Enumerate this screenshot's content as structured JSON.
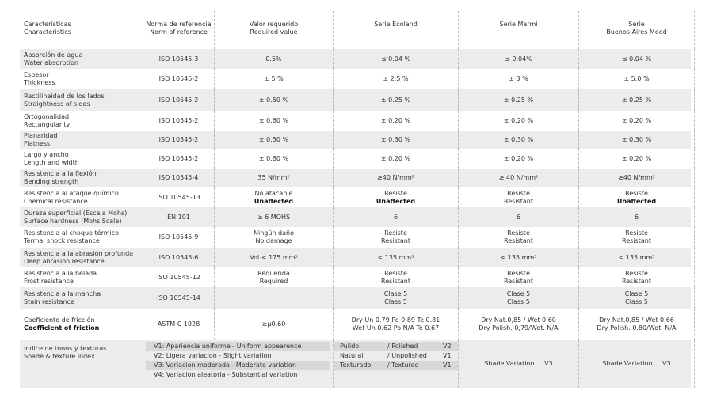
{
  "header": [
    "Características\nCharacteristics",
    "Norma de referencia\nNorm of reference",
    "Valor requerido\nRequired value",
    "Serie Ecoland",
    "Serie Marmi",
    "Serie\nBuenos Aires Mood"
  ],
  "rows": [
    [
      "Absorción de agua\nWater absorption",
      "ISO 10545-3",
      "0.5%",
      "≤ 0.04 %",
      "≤ 0.04%",
      "≤ 0.04 %"
    ],
    [
      "Espesor\nThickness",
      "ISO 10545-2",
      "± 5 %",
      "± 2.5 %",
      "± 3 %",
      "± 5.0 %"
    ],
    [
      "Rectilineidad de los lados\nStraightness of sides",
      "ISO 10545-2",
      "± 0.50 %",
      "± 0.25 %",
      "± 0.25 %",
      "± 0.25 %"
    ],
    [
      "Ortogonalidad\nRectangularity",
      "ISO 10545-2",
      "± 0.60 %",
      "± 0.20 %",
      "± 0.20 %",
      "± 0.20 %"
    ],
    [
      "Planaridad\nFlatness",
      "ISO 10545-2",
      "± 0.50 %",
      "± 0.30 %",
      "± 0.30 %",
      "± 0.30 %"
    ],
    [
      "Largo y ancho\nLength and width",
      "ISO 10545-2",
      "± 0.60 %",
      "± 0.20 %",
      "± 0.20 %",
      "± 0.20 %"
    ],
    [
      "Resistencia a la flexión\nBending strength",
      "ISO 10545-4",
      "35 N/mm²",
      "≥40 N/mm²",
      "≥ 40 N/mm²",
      "≥40 N/mm²"
    ],
    [
      "Resistencia al ataque químico\nChemical resistance",
      "ISO 10545-13",
      "No atacable\n*Unaffected",
      "Resiste\n*Unaffected",
      "Resiste\nResistant",
      "Resiste\n*Unaffected"
    ],
    [
      "Dureza superficial (Escala Mohs)\nSurface hardness (Mohs Scale)",
      "EN 101",
      "≥ 6 MOHS",
      "6",
      "6",
      "6"
    ],
    [
      "Resistencia al choque térmico\nTermal shock resistance",
      "ISO 10545-9",
      "Ningún daño\nNo damage",
      "Resiste\nResistant",
      "Resiste\nResistant",
      "Resiste\nResistant"
    ],
    [
      "Resistencia a la abrasión profunda\nDeep abrasion resistance",
      "ISO 10545-6",
      "Vol < 175 mm³",
      "< 135 mm³",
      "< 135 mm³",
      "< 135 mm³"
    ],
    [
      "Resistencia a la helada\nFrost resistance",
      "ISO 10545-12",
      "Requerida\nRequired",
      "Resiste\nResistant",
      "Resiste\nResistant",
      "Resiste\nResistant"
    ],
    [
      "Resistencia a la mancha\nStain resistance",
      "ISO 10545-14",
      "",
      "Clase 5\nClass 5",
      "Clase 5\nClass 5",
      "Clase 5\nClass 5"
    ],
    [
      "Coeficiente de fricción\n*Coefficient of friction",
      "ASTM C 1028",
      "≥μ0.60",
      "Dry  Un 0.79  Po 0.89  Te 0.81\nWet Un 0.62  Po N/A  Te 0.67",
      "Dry Nat.0,85 / Wet 0.60\nDry Polish. 0,79/Wet. N/A",
      "Dry Nat.0,85 / Wet 0,66\nDry Polish. 0.80/Wet. N/A"
    ]
  ],
  "shade": {
    "label": "Indice de tonos y texturas\nShade & texture index",
    "scale": [
      "V1: Apariencia uniforme - Uniform appearence",
      "V2: Ligera variacion - Slight variation",
      "V3: Variacion moderada - Moderate variation",
      "V4: Variacion aleatoria - Substantial variation"
    ],
    "ecoland": [
      [
        "Pulido",
        "/ Polished",
        "V2"
      ],
      [
        "Natural",
        "/ Unpolished",
        "V1"
      ],
      [
        "Texturado",
        "/ Textured",
        "V1"
      ]
    ],
    "marmi": "Shade Variation     V3",
    "buenos": "Shade Variation     V3"
  }
}
